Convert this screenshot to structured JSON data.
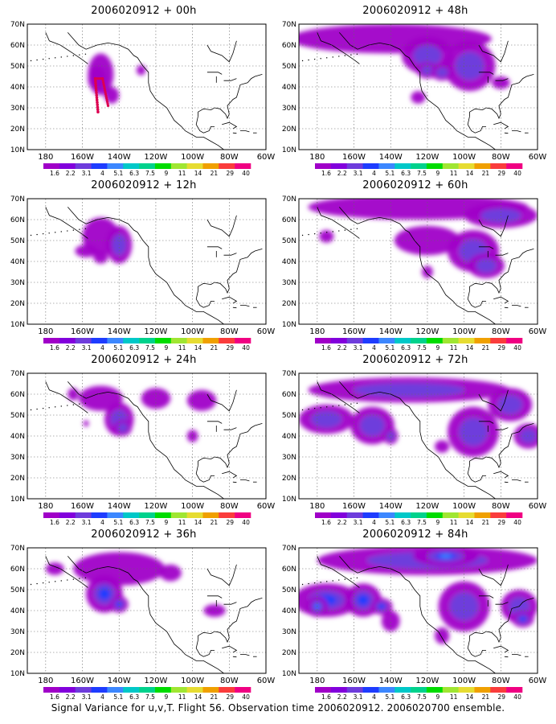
{
  "panels": [
    {
      "title": "2006020912 + 00h",
      "blobs": [
        [
          150,
          46,
          7,
          10,
          0.45
        ],
        [
          152,
          44,
          5,
          6,
          0.2
        ],
        [
          144,
          36,
          4,
          4,
          0.2
        ],
        [
          128,
          48,
          2.5,
          2.5,
          0.2
        ]
      ],
      "track": true
    },
    {
      "title": "2006020912 + 48h",
      "blobs": [
        [
          140,
          63,
          55,
          7,
          0.45
        ],
        [
          120,
          55,
          14,
          9,
          0.5
        ],
        [
          97,
          50,
          14,
          12,
          0.5
        ],
        [
          120,
          48,
          6,
          4,
          0.55
        ],
        [
          112,
          47,
          6,
          4,
          0.5
        ],
        [
          125,
          35,
          4,
          3,
          0.4
        ],
        [
          80,
          42,
          5,
          3,
          0.4
        ]
      ]
    },
    {
      "title": "2006020912 + 12h",
      "blobs": [
        [
          150,
          52,
          10,
          9,
          0.45
        ],
        [
          140,
          48,
          7,
          9,
          0.5
        ],
        [
          158,
          45,
          6,
          3,
          0.3
        ],
        [
          150,
          42,
          4,
          3,
          0.2
        ]
      ]
    },
    {
      "title": "2006020912 + 60h",
      "blobs": [
        [
          125,
          66,
          60,
          6,
          0.45
        ],
        [
          80,
          62,
          20,
          6,
          0.5
        ],
        [
          120,
          50,
          18,
          7,
          0.45
        ],
        [
          95,
          45,
          14,
          10,
          0.5
        ],
        [
          88,
          38,
          10,
          6,
          0.5
        ],
        [
          175,
          52,
          4,
          3,
          0.4
        ],
        [
          120,
          35,
          3,
          3,
          0.4
        ]
      ]
    },
    {
      "title": "2006020912 + 24h",
      "blobs": [
        [
          150,
          58,
          12,
          6,
          0.45
        ],
        [
          140,
          48,
          8,
          8,
          0.6
        ],
        [
          138,
          44,
          5,
          4,
          0.6
        ],
        [
          120,
          58,
          8,
          5,
          0.45
        ],
        [
          95,
          57,
          8,
          5,
          0.45
        ],
        [
          100,
          40,
          3,
          3,
          0.3
        ],
        [
          158,
          46,
          1.5,
          1.5,
          0.2
        ],
        [
          165,
          60,
          3,
          3,
          0.3
        ]
      ]
    },
    {
      "title": "2006020912 + 72h",
      "blobs": [
        [
          130,
          62,
          55,
          6,
          0.5
        ],
        [
          175,
          48,
          15,
          7,
          0.55
        ],
        [
          150,
          45,
          12,
          9,
          0.6
        ],
        [
          140,
          40,
          4,
          4,
          0.5
        ],
        [
          95,
          42,
          14,
          12,
          0.55
        ],
        [
          75,
          55,
          12,
          8,
          0.5
        ],
        [
          65,
          40,
          8,
          6,
          0.5
        ],
        [
          112,
          35,
          4,
          3,
          0.4
        ]
      ]
    },
    {
      "title": "2006020912 + 36h",
      "blobs": [
        [
          140,
          60,
          25,
          8,
          0.45
        ],
        [
          148,
          48,
          10,
          9,
          0.7
        ],
        [
          140,
          43,
          5,
          4,
          0.75
        ],
        [
          175,
          60,
          5,
          3,
          0.35
        ],
        [
          88,
          40,
          6,
          3,
          0.4
        ],
        [
          112,
          58,
          6,
          4,
          0.4
        ]
      ]
    },
    {
      "title": "2006020912 + 84h",
      "blobs": [
        [
          120,
          64,
          60,
          7,
          0.6
        ],
        [
          110,
          66,
          18,
          5,
          0.9
        ],
        [
          175,
          45,
          18,
          8,
          0.8
        ],
        [
          180,
          42,
          6,
          5,
          1.0
        ],
        [
          155,
          45,
          10,
          8,
          0.7
        ],
        [
          145,
          42,
          6,
          4,
          0.8
        ],
        [
          140,
          35,
          5,
          5,
          0.4
        ],
        [
          100,
          42,
          14,
          12,
          0.55
        ],
        [
          70,
          42,
          10,
          8,
          0.6
        ],
        [
          68,
          36,
          6,
          4,
          0.7
        ],
        [
          112,
          28,
          4,
          4,
          0.4
        ]
      ]
    }
  ],
  "axes": {
    "y_ticks": [
      "10N",
      "20N",
      "30N",
      "40N",
      "50N",
      "60N",
      "70N"
    ],
    "x_ticks": [
      "180",
      "160W",
      "140W",
      "120W",
      "100W",
      "80W",
      "60W"
    ],
    "lon_range": [
      190,
      60
    ],
    "lat_range": [
      10,
      70
    ]
  },
  "colorbar": {
    "labels": [
      "1.6",
      "2.2",
      "3.1",
      "4",
      "5.1",
      "6.3",
      "7.5",
      "9",
      "11",
      "14",
      "21",
      "29",
      "40"
    ],
    "colors": [
      "#a000c8",
      "#8200dc",
      "#6e3cdc",
      "#1e3cff",
      "#3c87ff",
      "#00c8c8",
      "#00d28c",
      "#00dc00",
      "#a0e632",
      "#e6dc32",
      "#f0a000",
      "#fa3c3c",
      "#f00082"
    ]
  },
  "caption": "Signal Variance for u,v,T. Flight 56. Observation time 2006020912. 2006020700 ensemble."
}
